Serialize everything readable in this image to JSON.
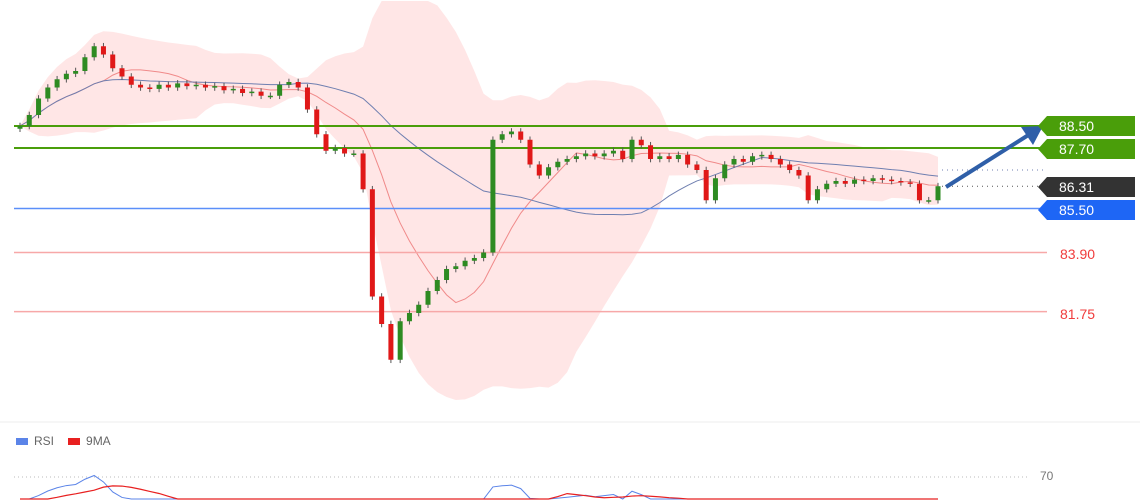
{
  "chart_data": {
    "type": "candlestick",
    "closes": [
      88.5,
      88.9,
      89.5,
      89.9,
      90.2,
      90.4,
      90.5,
      91.0,
      91.4,
      91.1,
      90.6,
      90.3,
      90.0,
      89.9,
      89.85,
      90.0,
      89.9,
      90.05,
      89.95,
      90.0,
      89.9,
      89.95,
      89.8,
      89.85,
      89.7,
      89.75,
      89.6,
      89.6,
      90.0,
      90.1,
      89.9,
      89.1,
      88.2,
      87.6,
      87.7,
      87.5,
      87.5,
      86.2,
      82.3,
      81.3,
      80.0,
      81.4,
      81.7,
      82.0,
      82.5,
      82.9,
      83.3,
      83.4,
      83.6,
      83.7,
      83.9,
      88.0,
      88.2,
      88.3,
      88.0,
      87.1,
      86.7,
      87.0,
      87.2,
      87.3,
      87.4,
      87.5,
      87.4,
      87.5,
      87.6,
      87.3,
      88.0,
      87.8,
      87.3,
      87.4,
      87.3,
      87.45,
      87.1,
      86.9,
      85.8,
      86.6,
      87.1,
      87.3,
      87.2,
      87.4,
      87.45,
      87.3,
      87.1,
      86.9,
      86.7,
      85.8,
      86.2,
      86.4,
      86.5,
      86.4,
      86.55,
      86.5,
      86.6,
      86.55,
      86.5,
      86.45,
      86.4,
      85.8,
      85.8,
      86.31
    ],
    "levels": [
      {
        "label": "88.50",
        "value": 88.5,
        "kind": "resistance",
        "color": "#4a9e0a"
      },
      {
        "label": "87.70",
        "value": 87.7,
        "kind": "resistance",
        "color": "#4a9e0a"
      },
      {
        "label": "86.31",
        "value": 86.31,
        "kind": "current",
        "color": "#333333"
      },
      {
        "label": "85.50",
        "value": 85.5,
        "kind": "pivot",
        "color": "#1e66f5"
      },
      {
        "label": "83.90",
        "value": 83.9,
        "kind": "support",
        "color": "#f03c3c"
      },
      {
        "label": "81.75",
        "value": 81.75,
        "kind": "support",
        "color": "#f03c3c"
      }
    ],
    "forecast_arrow": {
      "from": 86.31,
      "to": 88.5,
      "direction": "up",
      "color": "#2f5fa8"
    },
    "indicators": {
      "bollinger_bands": true,
      "moving_averages": true
    },
    "rsi_panel": {
      "legend": [
        {
          "name": "RSI",
          "color": "#5b84e8"
        },
        {
          "name": "9MA",
          "color": "#e82020"
        }
      ],
      "level_label": "70",
      "level": 70
    },
    "grid": false
  }
}
